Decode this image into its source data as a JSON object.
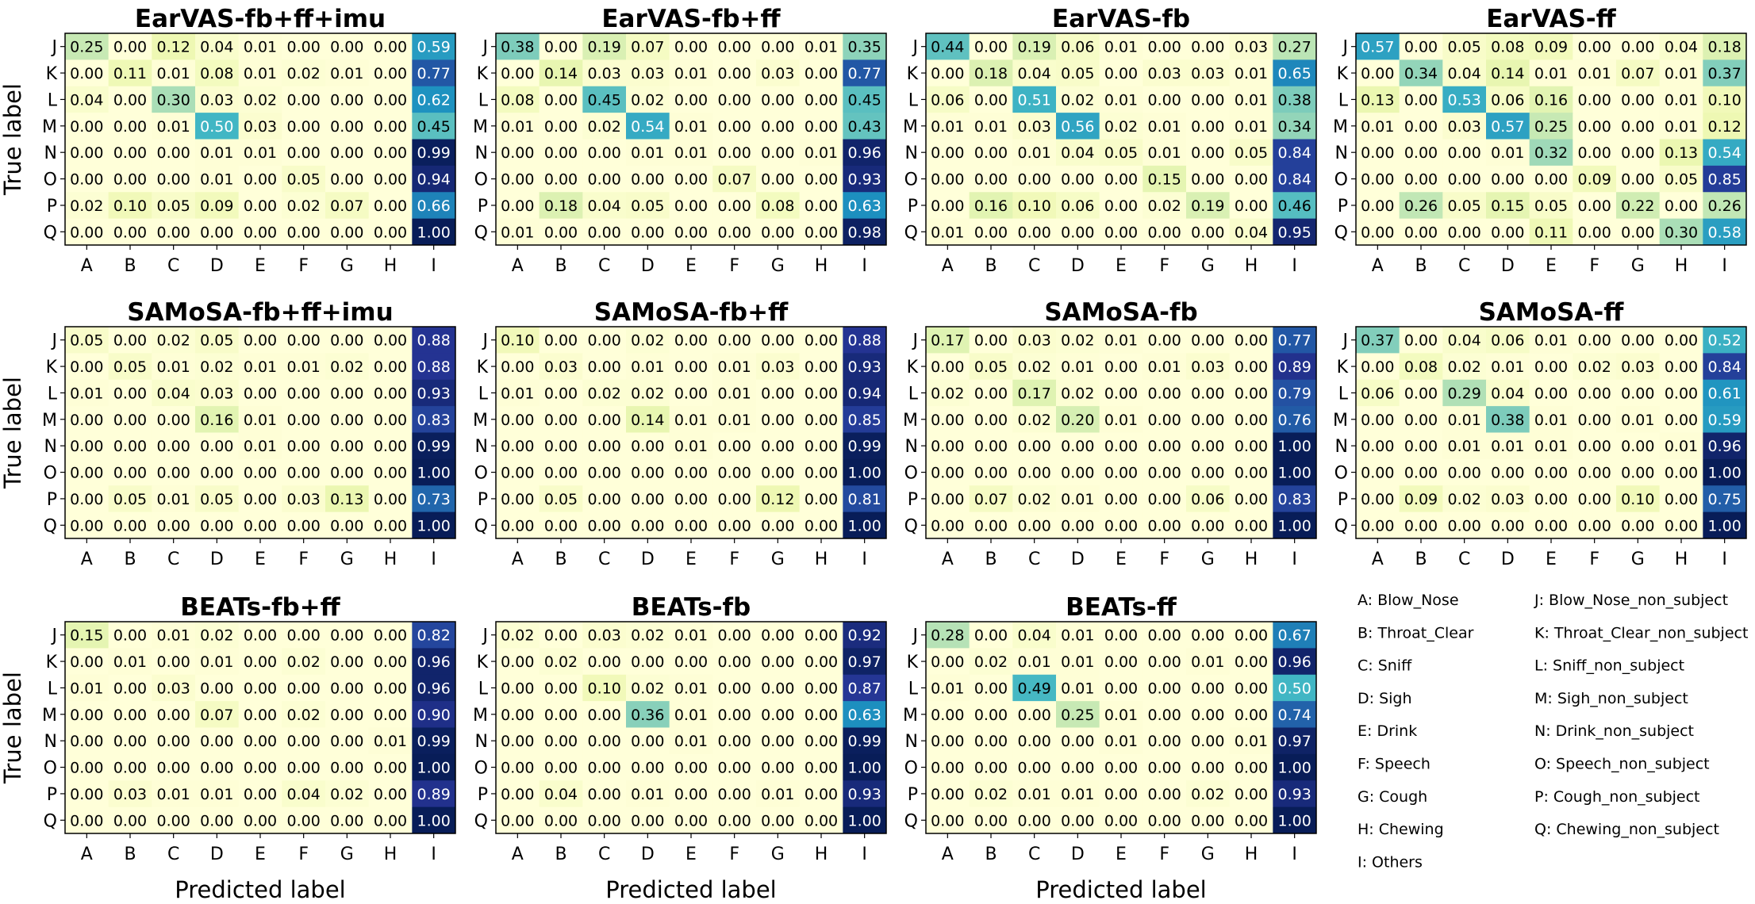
{
  "figure": {
    "y_axis_label": "True label",
    "x_axis_label": "Predicted label"
  },
  "legend": {
    "entries": [
      "A: Blow_Nose",
      "B: Throat_Clear",
      "C: Sniff",
      "D: Sigh",
      "E: Drink",
      "F: Speech",
      "G: Cough",
      "H: Chewing",
      "I: Others",
      "J: Blow_Nose_non_subject",
      "K: Throat_Clear_non_subject",
      "L: Sniff_non_subject",
      "M: Sigh_non_subject",
      "N: Drink_non_subject",
      "O: Speech_non_subject",
      "P: Cough_non_subject",
      "Q: Chewing_non_subject"
    ]
  },
  "chart_data": [
    {
      "type": "heatmap",
      "title": "EarVAS-fb+ff+imu",
      "xlabel": "",
      "ylabel": "True label",
      "x_categories": [
        "A",
        "B",
        "C",
        "D",
        "E",
        "F",
        "G",
        "H",
        "I"
      ],
      "y_categories": [
        "J",
        "K",
        "L",
        "M",
        "N",
        "O",
        "P",
        "Q"
      ],
      "values": [
        [
          0.25,
          0.0,
          0.12,
          0.04,
          0.01,
          0.0,
          0.0,
          0.0,
          0.59
        ],
        [
          0.0,
          0.11,
          0.01,
          0.08,
          0.01,
          0.02,
          0.01,
          0.0,
          0.77
        ],
        [
          0.04,
          0.0,
          0.3,
          0.03,
          0.02,
          0.0,
          0.0,
          0.0,
          0.62
        ],
        [
          0.0,
          0.0,
          0.01,
          0.5,
          0.03,
          0.0,
          0.0,
          0.0,
          0.45
        ],
        [
          0.0,
          0.0,
          0.0,
          0.01,
          0.01,
          0.0,
          0.0,
          0.0,
          0.99
        ],
        [
          0.0,
          0.0,
          0.0,
          0.01,
          0.0,
          0.05,
          0.0,
          0.0,
          0.94
        ],
        [
          0.02,
          0.1,
          0.05,
          0.09,
          0.0,
          0.02,
          0.07,
          0.0,
          0.66
        ],
        [
          0.0,
          0.0,
          0.0,
          0.0,
          0.0,
          0.0,
          0.0,
          0.0,
          1.0
        ]
      ]
    },
    {
      "type": "heatmap",
      "title": "EarVAS-fb+ff",
      "xlabel": "",
      "ylabel": "",
      "x_categories": [
        "A",
        "B",
        "C",
        "D",
        "E",
        "F",
        "G",
        "H",
        "I"
      ],
      "y_categories": [
        "J",
        "K",
        "L",
        "M",
        "N",
        "O",
        "P",
        "Q"
      ],
      "values": [
        [
          0.38,
          0.0,
          0.19,
          0.07,
          0.0,
          0.0,
          0.0,
          0.01,
          0.35
        ],
        [
          0.0,
          0.14,
          0.03,
          0.03,
          0.01,
          0.0,
          0.03,
          0.0,
          0.77
        ],
        [
          0.08,
          0.0,
          0.45,
          0.02,
          0.0,
          0.0,
          0.0,
          0.0,
          0.45
        ],
        [
          0.01,
          0.0,
          0.02,
          0.54,
          0.01,
          0.0,
          0.0,
          0.0,
          0.43
        ],
        [
          0.0,
          0.0,
          0.0,
          0.01,
          0.01,
          0.0,
          0.0,
          0.01,
          0.96
        ],
        [
          0.0,
          0.0,
          0.0,
          0.0,
          0.0,
          0.07,
          0.0,
          0.0,
          0.93
        ],
        [
          0.0,
          0.18,
          0.04,
          0.05,
          0.0,
          0.0,
          0.08,
          0.0,
          0.63
        ],
        [
          0.01,
          0.0,
          0.0,
          0.0,
          0.0,
          0.0,
          0.0,
          0.0,
          0.98
        ]
      ]
    },
    {
      "type": "heatmap",
      "title": "EarVAS-fb",
      "xlabel": "",
      "ylabel": "",
      "x_categories": [
        "A",
        "B",
        "C",
        "D",
        "E",
        "F",
        "G",
        "H",
        "I"
      ],
      "y_categories": [
        "J",
        "K",
        "L",
        "M",
        "N",
        "O",
        "P",
        "Q"
      ],
      "values": [
        [
          0.44,
          0.0,
          0.19,
          0.06,
          0.01,
          0.0,
          0.0,
          0.03,
          0.27
        ],
        [
          0.0,
          0.18,
          0.04,
          0.05,
          0.0,
          0.03,
          0.03,
          0.01,
          0.65
        ],
        [
          0.06,
          0.0,
          0.51,
          0.02,
          0.01,
          0.0,
          0.0,
          0.01,
          0.38
        ],
        [
          0.01,
          0.01,
          0.03,
          0.56,
          0.02,
          0.01,
          0.0,
          0.01,
          0.34
        ],
        [
          0.0,
          0.0,
          0.01,
          0.04,
          0.05,
          0.01,
          0.0,
          0.05,
          0.84
        ],
        [
          0.0,
          0.0,
          0.0,
          0.0,
          0.0,
          0.15,
          0.0,
          0.0,
          0.84
        ],
        [
          0.0,
          0.16,
          0.1,
          0.06,
          0.0,
          0.02,
          0.19,
          0.0,
          0.46
        ],
        [
          0.01,
          0.0,
          0.0,
          0.0,
          0.0,
          0.0,
          0.0,
          0.04,
          0.95
        ]
      ]
    },
    {
      "type": "heatmap",
      "title": "EarVAS-ff",
      "xlabel": "",
      "ylabel": "",
      "x_categories": [
        "A",
        "B",
        "C",
        "D",
        "E",
        "F",
        "G",
        "H",
        "I"
      ],
      "y_categories": [
        "J",
        "K",
        "L",
        "M",
        "N",
        "O",
        "P",
        "Q"
      ],
      "values": [
        [
          0.57,
          0.0,
          0.05,
          0.08,
          0.09,
          0.0,
          0.0,
          0.04,
          0.18
        ],
        [
          0.0,
          0.34,
          0.04,
          0.14,
          0.01,
          0.01,
          0.07,
          0.01,
          0.37
        ],
        [
          0.13,
          0.0,
          0.53,
          0.06,
          0.16,
          0.0,
          0.0,
          0.01,
          0.1
        ],
        [
          0.01,
          0.0,
          0.03,
          0.57,
          0.25,
          0.0,
          0.0,
          0.01,
          0.12
        ],
        [
          0.0,
          0.0,
          0.0,
          0.01,
          0.32,
          0.0,
          0.0,
          0.13,
          0.54
        ],
        [
          0.0,
          0.0,
          0.0,
          0.0,
          0.0,
          0.09,
          0.0,
          0.05,
          0.85
        ],
        [
          0.0,
          0.26,
          0.05,
          0.15,
          0.05,
          0.0,
          0.22,
          0.0,
          0.26
        ],
        [
          0.0,
          0.0,
          0.0,
          0.0,
          0.11,
          0.0,
          0.0,
          0.3,
          0.58
        ]
      ]
    },
    {
      "type": "heatmap",
      "title": "SAMoSA-fb+ff+imu",
      "xlabel": "",
      "ylabel": "True label",
      "x_categories": [
        "A",
        "B",
        "C",
        "D",
        "E",
        "F",
        "G",
        "H",
        "I"
      ],
      "y_categories": [
        "J",
        "K",
        "L",
        "M",
        "N",
        "O",
        "P",
        "Q"
      ],
      "values": [
        [
          0.05,
          0.0,
          0.02,
          0.05,
          0.0,
          0.0,
          0.0,
          0.0,
          0.88
        ],
        [
          0.0,
          0.05,
          0.01,
          0.02,
          0.01,
          0.01,
          0.02,
          0.0,
          0.88
        ],
        [
          0.01,
          0.0,
          0.04,
          0.03,
          0.0,
          0.0,
          0.0,
          0.0,
          0.93
        ],
        [
          0.0,
          0.0,
          0.0,
          0.16,
          0.01,
          0.0,
          0.0,
          0.0,
          0.83
        ],
        [
          0.0,
          0.0,
          0.0,
          0.0,
          0.01,
          0.0,
          0.0,
          0.0,
          0.99
        ],
        [
          0.0,
          0.0,
          0.0,
          0.0,
          0.0,
          0.0,
          0.0,
          0.0,
          1.0
        ],
        [
          0.0,
          0.05,
          0.01,
          0.05,
          0.0,
          0.03,
          0.13,
          0.0,
          0.73
        ],
        [
          0.0,
          0.0,
          0.0,
          0.0,
          0.0,
          0.0,
          0.0,
          0.0,
          1.0
        ]
      ]
    },
    {
      "type": "heatmap",
      "title": "SAMoSA-fb+ff",
      "xlabel": "",
      "ylabel": "",
      "x_categories": [
        "A",
        "B",
        "C",
        "D",
        "E",
        "F",
        "G",
        "H",
        "I"
      ],
      "y_categories": [
        "J",
        "K",
        "L",
        "M",
        "N",
        "O",
        "P",
        "Q"
      ],
      "values": [
        [
          0.1,
          0.0,
          0.0,
          0.02,
          0.0,
          0.0,
          0.0,
          0.0,
          0.88
        ],
        [
          0.0,
          0.03,
          0.0,
          0.01,
          0.0,
          0.01,
          0.03,
          0.0,
          0.93
        ],
        [
          0.01,
          0.0,
          0.02,
          0.02,
          0.0,
          0.01,
          0.0,
          0.0,
          0.94
        ],
        [
          0.0,
          0.0,
          0.0,
          0.14,
          0.01,
          0.01,
          0.0,
          0.0,
          0.85
        ],
        [
          0.0,
          0.0,
          0.0,
          0.0,
          0.01,
          0.0,
          0.0,
          0.0,
          0.99
        ],
        [
          0.0,
          0.0,
          0.0,
          0.0,
          0.0,
          0.0,
          0.0,
          0.0,
          1.0
        ],
        [
          0.0,
          0.05,
          0.0,
          0.0,
          0.0,
          0.0,
          0.12,
          0.0,
          0.81
        ],
        [
          0.0,
          0.0,
          0.0,
          0.0,
          0.0,
          0.0,
          0.0,
          0.0,
          1.0
        ]
      ]
    },
    {
      "type": "heatmap",
      "title": "SAMoSA-fb",
      "xlabel": "",
      "ylabel": "",
      "x_categories": [
        "A",
        "B",
        "C",
        "D",
        "E",
        "F",
        "G",
        "H",
        "I"
      ],
      "y_categories": [
        "J",
        "K",
        "L",
        "M",
        "N",
        "O",
        "P",
        "Q"
      ],
      "values": [
        [
          0.17,
          0.0,
          0.03,
          0.02,
          0.01,
          0.0,
          0.0,
          0.0,
          0.77
        ],
        [
          0.0,
          0.05,
          0.02,
          0.01,
          0.0,
          0.01,
          0.03,
          0.0,
          0.89
        ],
        [
          0.02,
          0.0,
          0.17,
          0.02,
          0.0,
          0.0,
          0.0,
          0.0,
          0.79
        ],
        [
          0.0,
          0.0,
          0.02,
          0.2,
          0.01,
          0.0,
          0.0,
          0.0,
          0.76
        ],
        [
          0.0,
          0.0,
          0.0,
          0.0,
          0.0,
          0.0,
          0.0,
          0.0,
          1.0
        ],
        [
          0.0,
          0.0,
          0.0,
          0.0,
          0.0,
          0.0,
          0.0,
          0.0,
          1.0
        ],
        [
          0.0,
          0.07,
          0.02,
          0.01,
          0.0,
          0.0,
          0.06,
          0.0,
          0.83
        ],
        [
          0.0,
          0.0,
          0.0,
          0.0,
          0.0,
          0.0,
          0.0,
          0.0,
          1.0
        ]
      ]
    },
    {
      "type": "heatmap",
      "title": "SAMoSA-ff",
      "xlabel": "",
      "ylabel": "",
      "x_categories": [
        "A",
        "B",
        "C",
        "D",
        "E",
        "F",
        "G",
        "H",
        "I"
      ],
      "y_categories": [
        "J",
        "K",
        "L",
        "M",
        "N",
        "O",
        "P",
        "Q"
      ],
      "values": [
        [
          0.37,
          0.0,
          0.04,
          0.06,
          0.01,
          0.0,
          0.0,
          0.0,
          0.52
        ],
        [
          0.0,
          0.08,
          0.02,
          0.01,
          0.0,
          0.02,
          0.03,
          0.0,
          0.84
        ],
        [
          0.06,
          0.0,
          0.29,
          0.04,
          0.0,
          0.0,
          0.0,
          0.0,
          0.61
        ],
        [
          0.0,
          0.0,
          0.01,
          0.38,
          0.01,
          0.0,
          0.01,
          0.0,
          0.59
        ],
        [
          0.0,
          0.0,
          0.01,
          0.01,
          0.01,
          0.0,
          0.0,
          0.01,
          0.96
        ],
        [
          0.0,
          0.0,
          0.0,
          0.0,
          0.0,
          0.0,
          0.0,
          0.0,
          1.0
        ],
        [
          0.0,
          0.09,
          0.02,
          0.03,
          0.0,
          0.0,
          0.1,
          0.0,
          0.75
        ],
        [
          0.0,
          0.0,
          0.0,
          0.0,
          0.0,
          0.0,
          0.0,
          0.0,
          1.0
        ]
      ]
    },
    {
      "type": "heatmap",
      "title": "BEATs-fb+ff",
      "xlabel": "Predicted label",
      "ylabel": "True label",
      "x_categories": [
        "A",
        "B",
        "C",
        "D",
        "E",
        "F",
        "G",
        "H",
        "I"
      ],
      "y_categories": [
        "J",
        "K",
        "L",
        "M",
        "N",
        "O",
        "P",
        "Q"
      ],
      "values": [
        [
          0.15,
          0.0,
          0.01,
          0.02,
          0.0,
          0.0,
          0.0,
          0.0,
          0.82
        ],
        [
          0.0,
          0.01,
          0.0,
          0.01,
          0.0,
          0.02,
          0.0,
          0.0,
          0.96
        ],
        [
          0.01,
          0.0,
          0.03,
          0.0,
          0.0,
          0.0,
          0.0,
          0.0,
          0.96
        ],
        [
          0.0,
          0.0,
          0.0,
          0.07,
          0.0,
          0.02,
          0.0,
          0.0,
          0.9
        ],
        [
          0.0,
          0.0,
          0.0,
          0.0,
          0.0,
          0.0,
          0.0,
          0.01,
          0.99
        ],
        [
          0.0,
          0.0,
          0.0,
          0.0,
          0.0,
          0.0,
          0.0,
          0.0,
          1.0
        ],
        [
          0.0,
          0.03,
          0.01,
          0.01,
          0.0,
          0.04,
          0.02,
          0.0,
          0.89
        ],
        [
          0.0,
          0.0,
          0.0,
          0.0,
          0.0,
          0.0,
          0.0,
          0.0,
          1.0
        ]
      ]
    },
    {
      "type": "heatmap",
      "title": "BEATs-fb",
      "xlabel": "Predicted label",
      "ylabel": "",
      "x_categories": [
        "A",
        "B",
        "C",
        "D",
        "E",
        "F",
        "G",
        "H",
        "I"
      ],
      "y_categories": [
        "J",
        "K",
        "L",
        "M",
        "N",
        "O",
        "P",
        "Q"
      ],
      "values": [
        [
          0.02,
          0.0,
          0.03,
          0.02,
          0.01,
          0.0,
          0.0,
          0.0,
          0.92
        ],
        [
          0.0,
          0.02,
          0.0,
          0.0,
          0.0,
          0.0,
          0.0,
          0.0,
          0.97
        ],
        [
          0.0,
          0.0,
          0.1,
          0.02,
          0.01,
          0.0,
          0.0,
          0.0,
          0.87
        ],
        [
          0.0,
          0.0,
          0.0,
          0.36,
          0.01,
          0.0,
          0.0,
          0.0,
          0.63
        ],
        [
          0.0,
          0.0,
          0.0,
          0.0,
          0.01,
          0.0,
          0.0,
          0.0,
          0.99
        ],
        [
          0.0,
          0.0,
          0.0,
          0.0,
          0.0,
          0.0,
          0.0,
          0.0,
          1.0
        ],
        [
          0.0,
          0.04,
          0.0,
          0.01,
          0.0,
          0.0,
          0.01,
          0.0,
          0.93
        ],
        [
          0.0,
          0.0,
          0.0,
          0.0,
          0.0,
          0.0,
          0.0,
          0.0,
          1.0
        ]
      ]
    },
    {
      "type": "heatmap",
      "title": "BEATs-ff",
      "xlabel": "Predicted label",
      "ylabel": "",
      "x_categories": [
        "A",
        "B",
        "C",
        "D",
        "E",
        "F",
        "G",
        "H",
        "I"
      ],
      "y_categories": [
        "J",
        "K",
        "L",
        "M",
        "N",
        "O",
        "P",
        "Q"
      ],
      "values": [
        [
          0.28,
          0.0,
          0.04,
          0.01,
          0.0,
          0.0,
          0.0,
          0.0,
          0.67
        ],
        [
          0.0,
          0.02,
          0.01,
          0.01,
          0.0,
          0.0,
          0.01,
          0.0,
          0.96
        ],
        [
          0.01,
          0.0,
          0.49,
          0.01,
          0.0,
          0.0,
          0.0,
          0.0,
          0.5
        ],
        [
          0.0,
          0.0,
          0.0,
          0.25,
          0.01,
          0.0,
          0.0,
          0.0,
          0.74
        ],
        [
          0.0,
          0.0,
          0.0,
          0.0,
          0.01,
          0.0,
          0.0,
          0.01,
          0.97
        ],
        [
          0.0,
          0.0,
          0.0,
          0.0,
          0.0,
          0.0,
          0.0,
          0.0,
          1.0
        ],
        [
          0.0,
          0.02,
          0.01,
          0.01,
          0.0,
          0.0,
          0.02,
          0.0,
          0.93
        ],
        [
          0.0,
          0.0,
          0.0,
          0.0,
          0.0,
          0.0,
          0.0,
          0.0,
          1.0
        ]
      ]
    }
  ]
}
